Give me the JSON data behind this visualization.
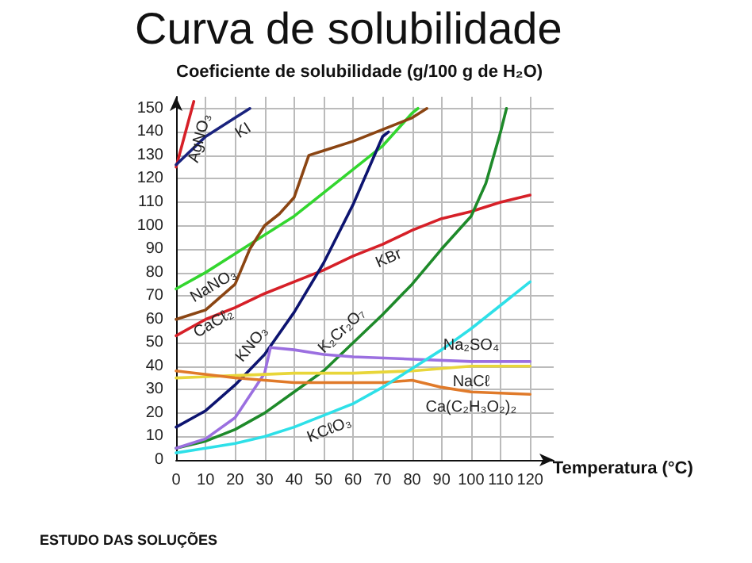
{
  "chart_data": {
    "type": "line",
    "title": "Curva de solubilidade",
    "xlabel": "Temperatura (°C)",
    "ylabel": "Coeficiente de solubilidade (g/100 g de H₂O)",
    "xlim": [
      0,
      128
    ],
    "ylim": [
      0,
      155
    ],
    "xticks": [
      0,
      10,
      20,
      30,
      40,
      50,
      60,
      70,
      80,
      90,
      100,
      110,
      120
    ],
    "yticks": [
      0,
      10,
      20,
      30,
      40,
      50,
      60,
      70,
      80,
      90,
      100,
      110,
      120,
      130,
      140,
      150
    ],
    "grid": true,
    "marker": "none",
    "line_style": "solid",
    "series": [
      {
        "color": "#d62028",
        "x": [
          0,
          3,
          6
        ],
        "values": [
          125,
          139,
          153
        ]
      },
      {
        "color": "#1a237e",
        "x": [
          0,
          10,
          20,
          25
        ],
        "values": [
          126,
          138,
          146,
          150
        ]
      },
      {
        "color": "#33d62f",
        "x": [
          0,
          10,
          20,
          30,
          40,
          50,
          60,
          70,
          80,
          82
        ],
        "values": [
          73,
          80,
          88,
          96,
          104,
          114,
          124,
          134,
          148,
          150
        ]
      },
      {
        "color": "#8b4513",
        "x": [
          0,
          10,
          20,
          25,
          30,
          35,
          40,
          45,
          50,
          60,
          70,
          80,
          85
        ],
        "values": [
          60,
          64,
          75,
          90,
          100,
          105,
          112,
          130,
          132,
          136,
          141,
          146,
          150
        ]
      },
      {
        "color": "#d62028",
        "x": [
          0,
          10,
          20,
          30,
          40,
          50,
          60,
          70,
          80,
          90,
          100,
          110,
          120
        ],
        "values": [
          53,
          60,
          65,
          71,
          76,
          81,
          87,
          92,
          98,
          103,
          106,
          110,
          113
        ]
      },
      {
        "color": "#0d1470",
        "x": [
          0,
          10,
          20,
          30,
          40,
          50,
          60,
          70,
          72
        ],
        "values": [
          14,
          21,
          32,
          45,
          63,
          84,
          109,
          138,
          140
        ]
      },
      {
        "color": "#1e8a2a",
        "x": [
          0,
          10,
          20,
          30,
          40,
          50,
          60,
          70,
          80,
          90,
          100,
          105,
          110,
          112
        ],
        "values": [
          5,
          8,
          13,
          20,
          29,
          38,
          50,
          62,
          75,
          90,
          104,
          118,
          140,
          150
        ]
      },
      {
        "color": "#9b6fe0",
        "x": [
          0,
          10,
          20,
          30,
          32,
          40,
          50,
          60,
          80,
          100,
          120
        ],
        "values": [
          5,
          9,
          18,
          37,
          48,
          47,
          45,
          44,
          43,
          42,
          42
        ]
      },
      {
        "color": "#e8d63a",
        "x": [
          0,
          20,
          40,
          60,
          80,
          100,
          120
        ],
        "values": [
          35,
          36,
          37,
          37,
          38,
          40,
          40
        ]
      },
      {
        "color": "#e07a2a",
        "x": [
          0,
          20,
          40,
          60,
          70,
          80,
          90,
          100,
          120
        ],
        "values": [
          38,
          35,
          33,
          33,
          33,
          34,
          31,
          29,
          28
        ]
      },
      {
        "color": "#2ee0e8",
        "x": [
          0,
          10,
          20,
          30,
          40,
          50,
          60,
          70,
          80,
          90,
          100,
          110,
          120
        ],
        "values": [
          3,
          5,
          7,
          10,
          14,
          19,
          24,
          31,
          39,
          47,
          56,
          66,
          76
        ]
      }
    ],
    "annotations": [
      {
        "text": "AgNO₃",
        "x": 3,
        "y": 139
      },
      {
        "text": "KI",
        "x": 20,
        "y": 146
      },
      {
        "text": "NaNO₃",
        "x": 10,
        "y": 80
      },
      {
        "text": "CaCℓ₂",
        "x": 10,
        "y": 64
      },
      {
        "text": "KBr",
        "x": 70,
        "y": 92
      },
      {
        "text": "KNO₃",
        "x": 30,
        "y": 45
      },
      {
        "text": "K₂Cr₂O₇",
        "x": 60,
        "y": 50
      },
      {
        "text": "Na₂SO₄",
        "x": 100,
        "y": 42
      },
      {
        "text": "NaCℓ",
        "x": 100,
        "y": 40
      },
      {
        "text": "Ca(C₂H₃O₂)₂",
        "x": 100,
        "y": 29
      },
      {
        "text": "KCℓO₃",
        "x": 50,
        "y": 19
      },
      "ESTUDO DAS SOLUÇÕES"
    ]
  }
}
